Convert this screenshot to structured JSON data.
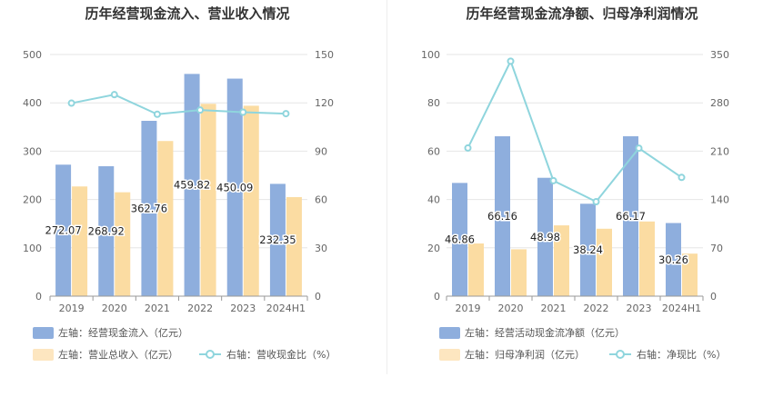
{
  "chart_data": [
    {
      "type": "bar",
      "title": "历年经营现金流入、营业收入情况",
      "categories": [
        "2019",
        "2020",
        "2021",
        "2022",
        "2023",
        "2024H1"
      ],
      "ylim_left": [
        0,
        500
      ],
      "yticks_left": [
        "0",
        "100",
        "200",
        "300",
        "400",
        "500"
      ],
      "ylim_right": [
        0,
        150
      ],
      "yticks_right": [
        "0",
        "30",
        "60",
        "90",
        "120",
        "150"
      ],
      "grid": true,
      "legend_position": "bottom",
      "series": [
        {
          "name": "左轴：经营现金流入（亿元）",
          "axis": "left",
          "kind": "bar",
          "color": "#8eaedd",
          "values": [
            272.07,
            268.92,
            362.76,
            459.82,
            450.09,
            232.35
          ],
          "labels": [
            "272.07",
            "268.92",
            "362.76",
            "459.82",
            "450.09",
            "232.35"
          ]
        },
        {
          "name": "左轴：营业总收入（亿元）",
          "axis": "left",
          "kind": "bar",
          "color": "#fbdca2",
          "values": [
            227,
            215,
            321,
            398,
            394,
            205
          ]
        },
        {
          "name": "右轴：营收现金比（%）",
          "axis": "right",
          "kind": "line",
          "color": "#8fd5dd",
          "values": [
            119.8,
            125.1,
            112.9,
            115.5,
            114.2,
            113.3
          ]
        }
      ]
    },
    {
      "type": "bar",
      "title": "历年经营现金流净额、归母净利润情况",
      "categories": [
        "2019",
        "2020",
        "2021",
        "2022",
        "2023",
        "2024H1"
      ],
      "ylim_left": [
        0,
        100
      ],
      "yticks_left": [
        "0",
        "20",
        "40",
        "60",
        "80",
        "100"
      ],
      "ylim_right": [
        0,
        350
      ],
      "yticks_right": [
        "0",
        "70",
        "140",
        "210",
        "280",
        "350"
      ],
      "grid": true,
      "legend_position": "bottom",
      "series": [
        {
          "name": "左轴：经营活动现金流净额（亿元）",
          "axis": "left",
          "kind": "bar",
          "color": "#8eaedd",
          "values": [
            46.86,
            66.16,
            48.98,
            38.24,
            66.17,
            30.26
          ],
          "labels": [
            "46.86",
            "66.16",
            "48.98",
            "38.24",
            "66.17",
            "30.26"
          ]
        },
        {
          "name": "左轴：归母净利润（亿元）",
          "axis": "left",
          "kind": "bar",
          "color": "#fbdca2",
          "values": [
            21.8,
            19.4,
            29.3,
            27.9,
            30.9,
            17.6
          ]
        },
        {
          "name": "右轴：净现比（%）",
          "axis": "right",
          "kind": "line",
          "color": "#8fd5dd",
          "values": [
            214.6,
            340.3,
            167.3,
            136.8,
            214.3,
            172.0
          ]
        }
      ]
    }
  ]
}
